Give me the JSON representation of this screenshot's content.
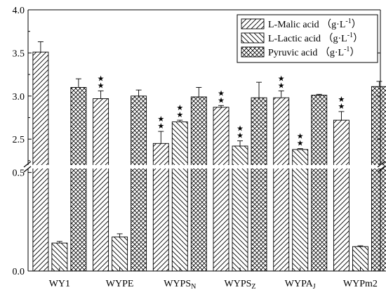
{
  "chart_data": {
    "type": "bar",
    "title": "",
    "xlabel": "",
    "ylabel": "",
    "axis_break": true,
    "y_ticks_upper": [
      "2.5",
      "3.0",
      "3.5",
      "4.0"
    ],
    "y_ticks_lower": [
      "0.0",
      "0.5"
    ],
    "ylim_upper": [
      2.2,
      4.0
    ],
    "ylim_lower": [
      0.0,
      0.52
    ],
    "categories": [
      {
        "label": "WY1",
        "base": "WY1",
        "sub": ""
      },
      {
        "label": "WYPE",
        "base": "WYPE",
        "sub": ""
      },
      {
        "label": "WYPSN",
        "base": "WYPS",
        "sub": "N"
      },
      {
        "label": "WYPSZ",
        "base": "WYPS",
        "sub": "Z"
      },
      {
        "label": "WYPAJ",
        "base": "WYPA",
        "sub": "J"
      },
      {
        "label": "WYPm2",
        "base": "WYPm2",
        "sub": ""
      }
    ],
    "series": [
      {
        "name": "L-Malic acid （g·L-1）",
        "name_base": "L-Malic acid （g·L",
        "name_sup": "-1",
        "name_end": "）",
        "pattern": "hatch-forward",
        "values": [
          3.51,
          2.97,
          2.45,
          2.87,
          2.98,
          2.72
        ],
        "errors": [
          0.12,
          0.09,
          0.14,
          0.02,
          0.08,
          0.1
        ],
        "marks": [
          "",
          "★★",
          "★★",
          "★★",
          "★★",
          "★★"
        ]
      },
      {
        "name": "L-Lactic acid （g·L-1）",
        "name_base": "L-Lactic acid （g·L",
        "name_sup": "-1",
        "name_end": "）",
        "pattern": "hatch-backward",
        "values": [
          0.142,
          0.173,
          2.7,
          2.42,
          2.38,
          0.124
        ],
        "errors": [
          0.008,
          0.016,
          0.02,
          0.06,
          0.01,
          0.004
        ],
        "marks": [
          "",
          "",
          "★★",
          "★★",
          "★★",
          ""
        ]
      },
      {
        "name": "Pyruvic acid （g·L-1）",
        "name_base": "Pyruvic acid （g·L",
        "name_sup": "-1",
        "name_end": "）",
        "pattern": "crosshatch",
        "values": [
          3.1,
          3.0,
          2.99,
          2.98,
          3.01,
          3.11
        ],
        "errors": [
          0.1,
          0.07,
          0.11,
          0.18,
          0.01,
          0.06
        ],
        "marks": [
          "",
          "",
          "",
          "",
          "",
          ""
        ]
      }
    ],
    "legend_position": "top-right",
    "grid": false
  }
}
